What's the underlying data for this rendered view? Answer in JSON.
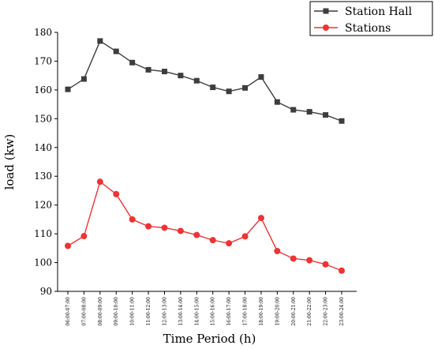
{
  "chart_data": {
    "type": "line",
    "xlabel": "Time Period (h)",
    "ylabel": "load (kw)",
    "ylim": [
      90,
      180
    ],
    "yticks": [
      90,
      100,
      110,
      120,
      130,
      140,
      150,
      160,
      170,
      180
    ],
    "categories": [
      "06:00-07:00",
      "07:00-08:00",
      "08:00-09:00",
      "09:00-10:00",
      "10:00-11:00",
      "11:00-12:00",
      "12:00-13:00",
      "13:00-14:00",
      "14:00-15:00",
      "15:00-16:00",
      "16:00-17:00",
      "17:00-18:00",
      "18:00-19:00",
      "19:00-20:00",
      "20:00-21:00",
      "21:00-22:00",
      "22:00-23:00",
      "23:00-24:00"
    ],
    "legend_position": "top-right",
    "series": [
      {
        "name": "Station Hall",
        "color": "#3d3d3d",
        "marker": "square",
        "values": [
          160.2,
          163.8,
          177.0,
          173.4,
          169.5,
          167.0,
          166.4,
          165.0,
          163.2,
          160.9,
          159.5,
          160.7,
          164.5,
          155.8,
          153.1,
          152.4,
          151.3,
          149.2
        ]
      },
      {
        "name": "Stations",
        "color": "#ee3333",
        "marker": "circle",
        "values": [
          105.8,
          109.2,
          128.1,
          123.8,
          115.0,
          112.6,
          112.1,
          111.0,
          109.6,
          107.8,
          106.7,
          109.1,
          115.5,
          104.0,
          101.4,
          100.8,
          99.4,
          97.2
        ]
      }
    ]
  }
}
